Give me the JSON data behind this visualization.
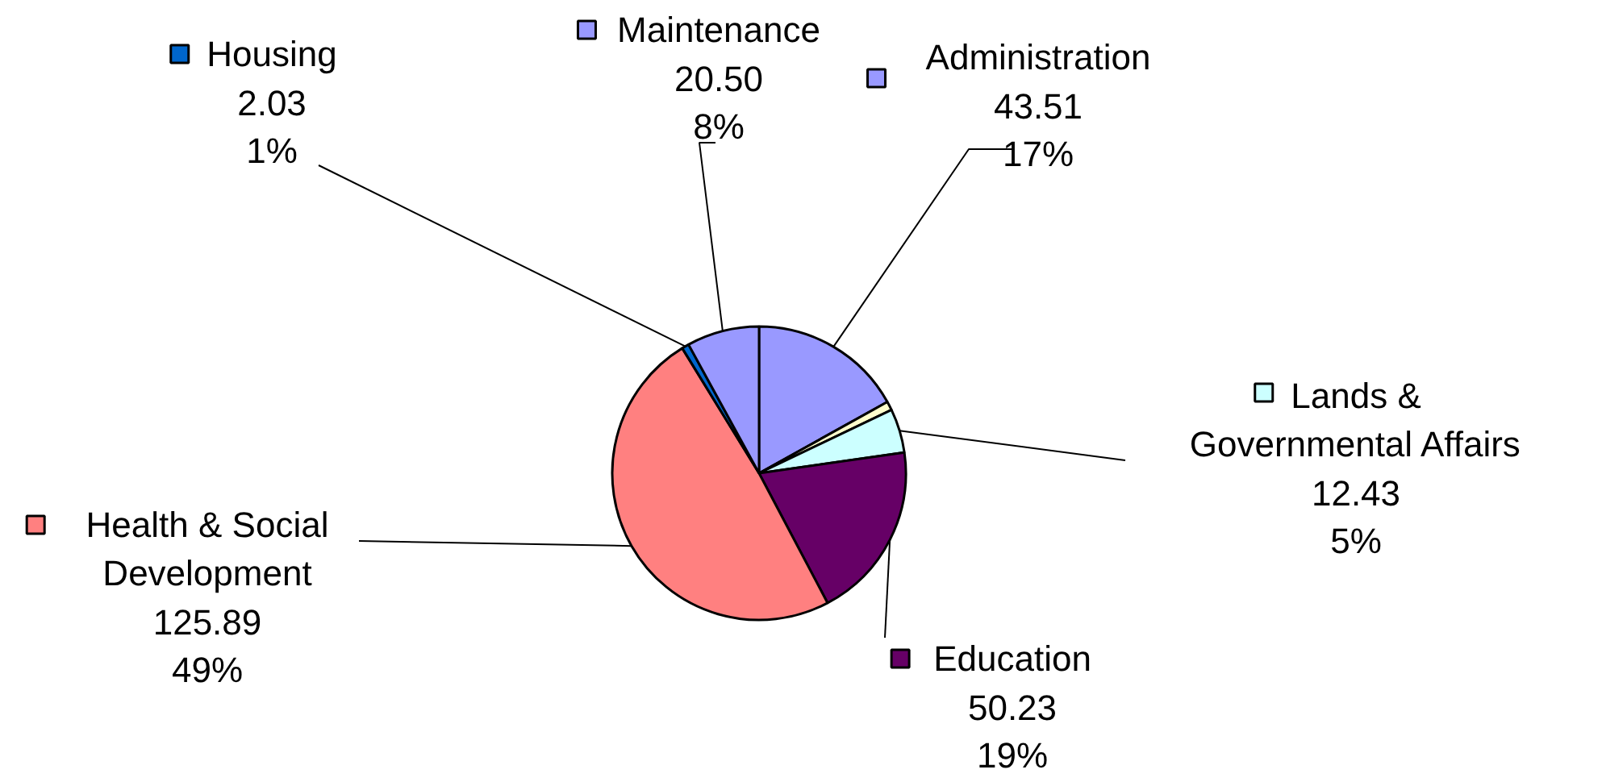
{
  "chart_data": {
    "type": "pie",
    "categories": [
      "Administration",
      null,
      "Lands &\nGovernmental Affairs",
      "Education",
      "Health & Social\nDevelopment",
      "Housing",
      "Maintenance"
    ],
    "values": [
      43.51,
      2.5,
      12.43,
      50.23,
      125.89,
      2.03,
      20.5
    ],
    "colors": [
      "#9999ff",
      "#ffffcc",
      "#ccffff",
      "#660066",
      "#ff8080",
      "#0066cc",
      "#9999ff"
    ],
    "value_labels": [
      "43.51\n17%",
      null,
      "12.43\n5%",
      "50.23\n19%",
      "125.89\n49%",
      "2.03\n1%",
      "20.50\n8%"
    ],
    "legend": true
  }
}
